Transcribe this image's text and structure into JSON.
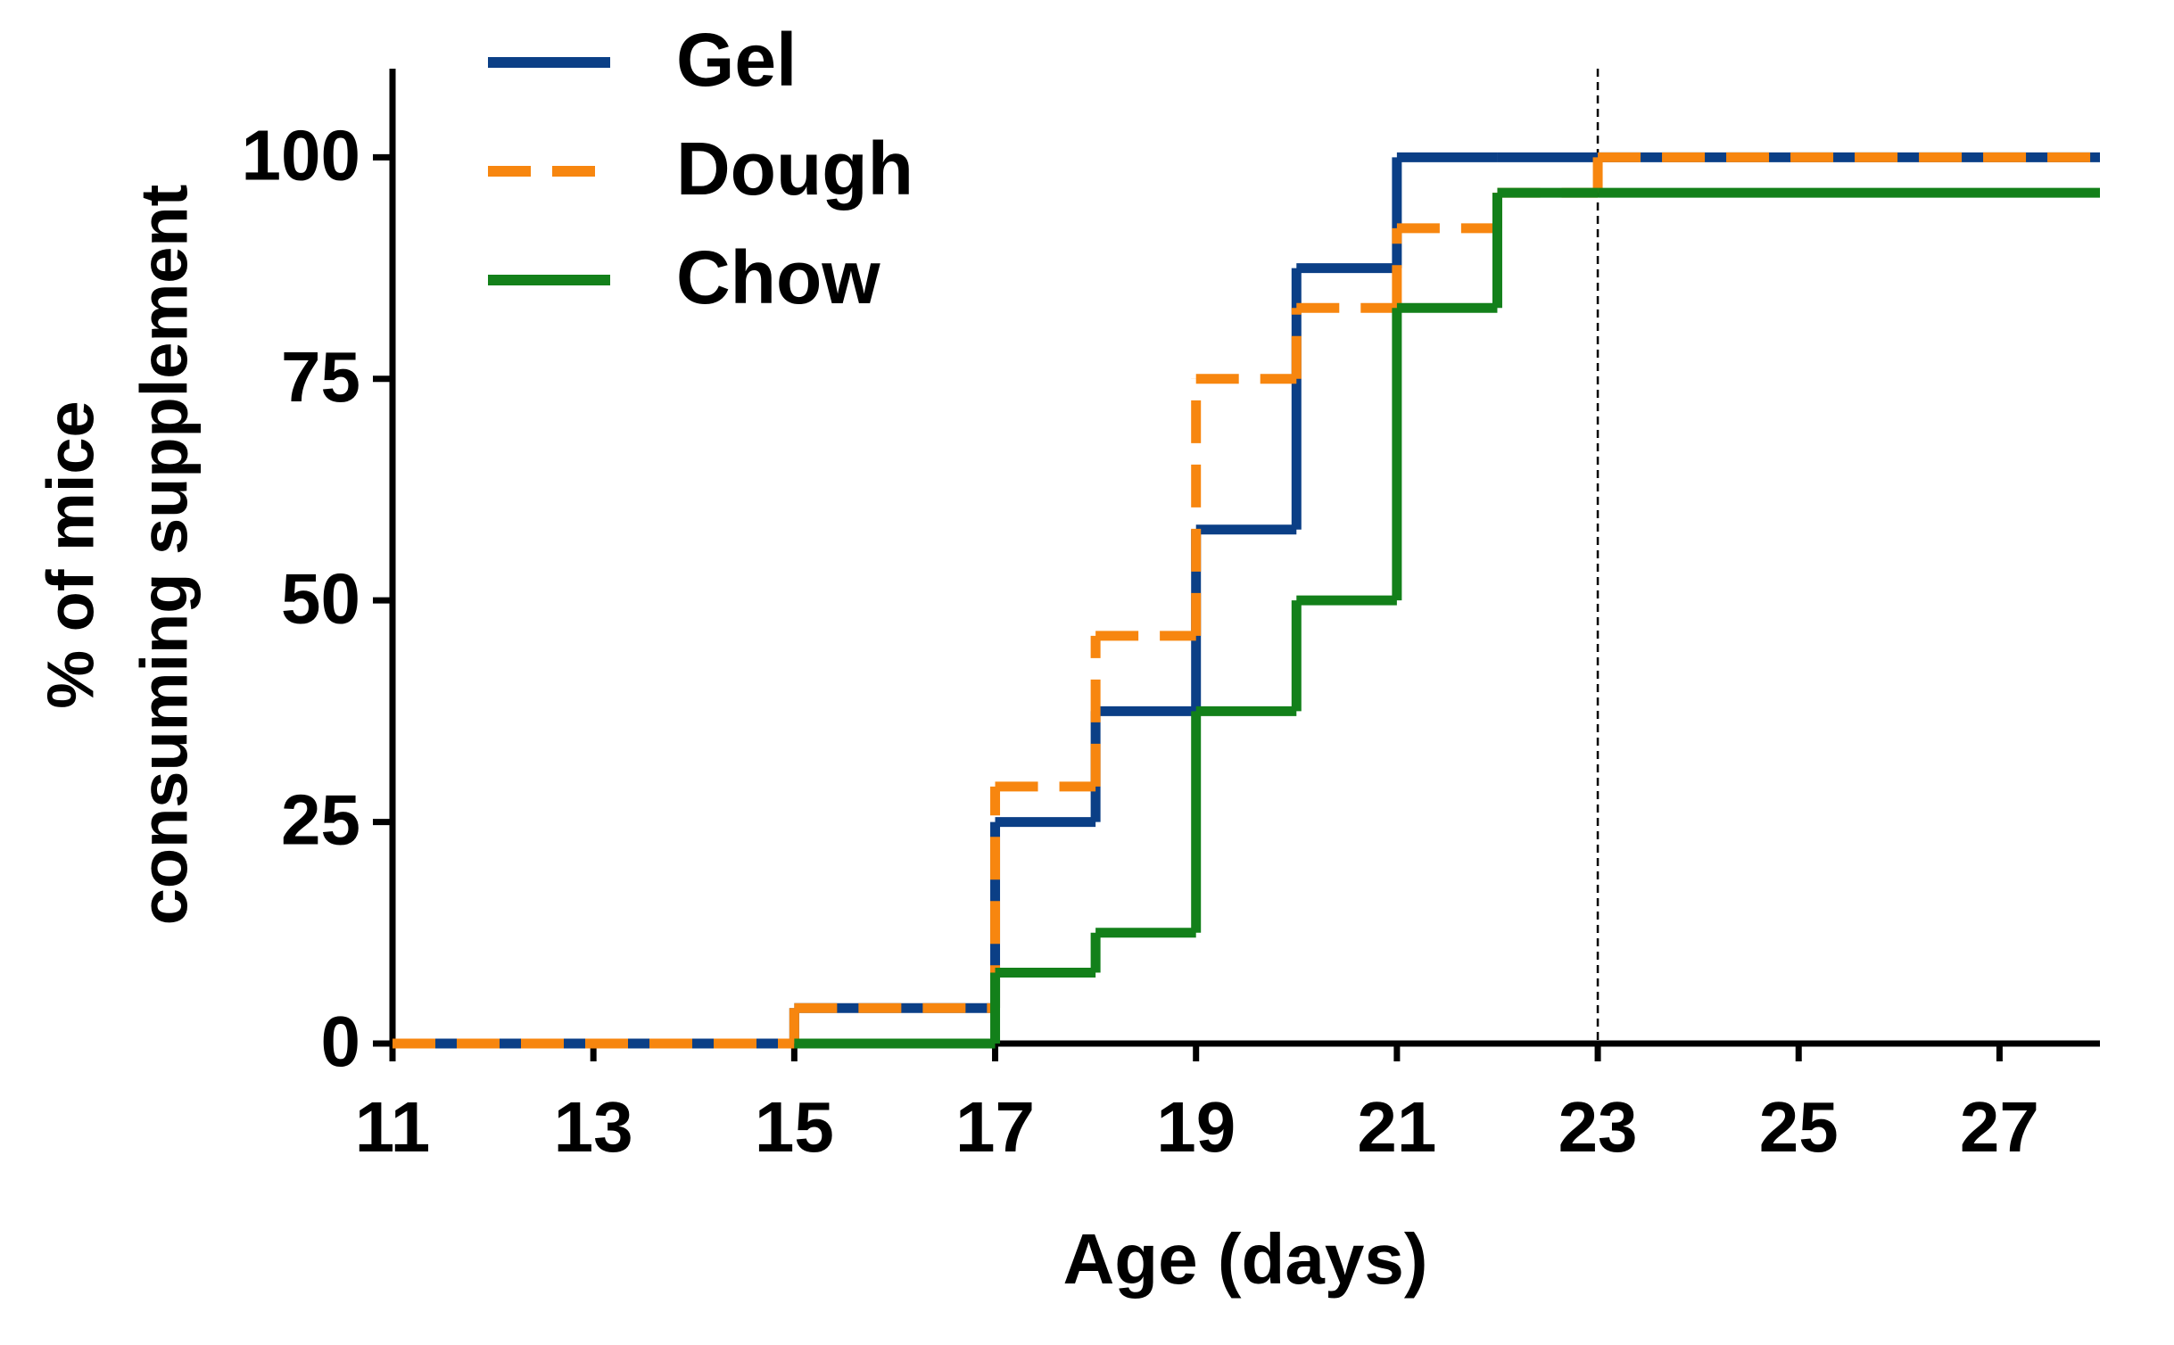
{
  "chart_data": {
    "type": "step",
    "xlabel": "Age (days)",
    "ylabel": [
      "% of mice",
      "consuming supplement"
    ],
    "x": [
      11,
      15,
      17,
      18,
      19,
      20,
      21,
      22,
      23
    ],
    "series": [
      {
        "name": "Gel",
        "color": "#0b3f86",
        "dashed": false,
        "values": [
          0,
          4,
          25,
          37.5,
          58,
          87.5,
          100,
          100,
          100
        ]
      },
      {
        "name": "Dough",
        "color": "#f7860f",
        "dashed": true,
        "values": [
          0,
          4,
          29,
          46,
          75,
          83,
          92,
          96,
          100
        ]
      },
      {
        "name": "Chow",
        "color": "#13801a",
        "dashed": false,
        "values": [
          null,
          0,
          8,
          12.5,
          37.5,
          50,
          83,
          96,
          96
        ]
      }
    ],
    "vline": 23,
    "xlim": [
      11,
      28
    ],
    "xticks": [
      11,
      13,
      15,
      17,
      19,
      21,
      23,
      25,
      27
    ],
    "ylim": [
      0,
      110
    ],
    "yticks": [
      0,
      25,
      50,
      75,
      100
    ],
    "legend": "top-left"
  }
}
